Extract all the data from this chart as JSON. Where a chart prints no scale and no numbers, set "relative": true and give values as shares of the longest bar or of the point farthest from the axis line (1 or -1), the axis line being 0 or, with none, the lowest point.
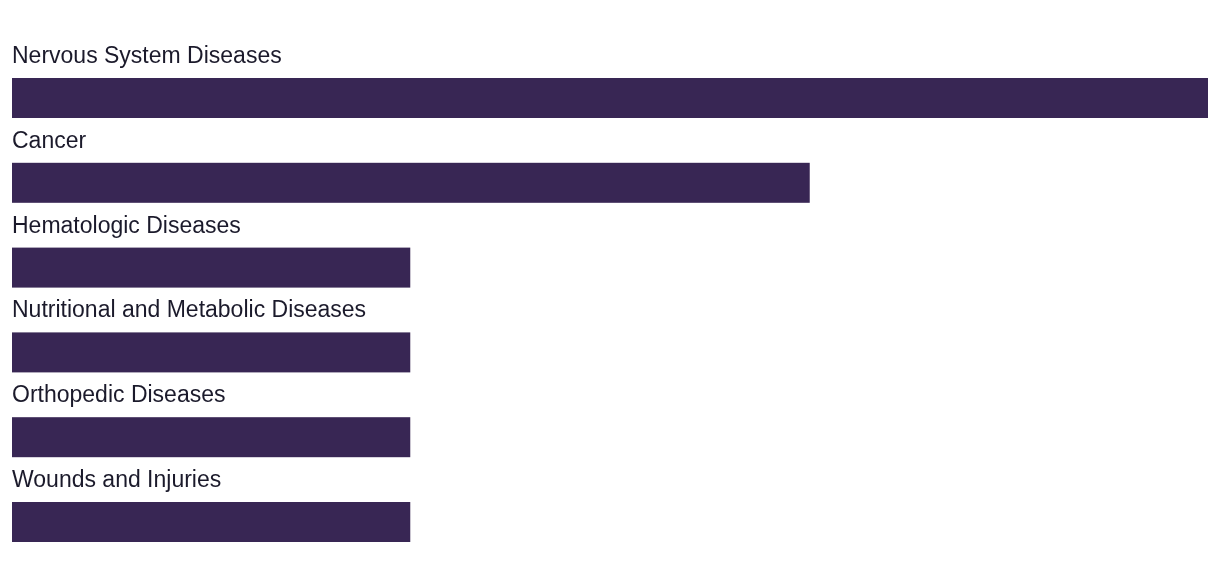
{
  "chart_data": {
    "type": "bar",
    "orientation": "horizontal",
    "relative": true,
    "categories": [
      "Nervous System Diseases",
      "Cancer",
      "Hematologic Diseases",
      "Nutritional and Metabolic Diseases",
      "Orthopedic Diseases",
      "Wounds and Injuries"
    ],
    "values": [
      1,
      0.667,
      0.333,
      0.333,
      0.333,
      0.333
    ],
    "color": "#382654"
  }
}
